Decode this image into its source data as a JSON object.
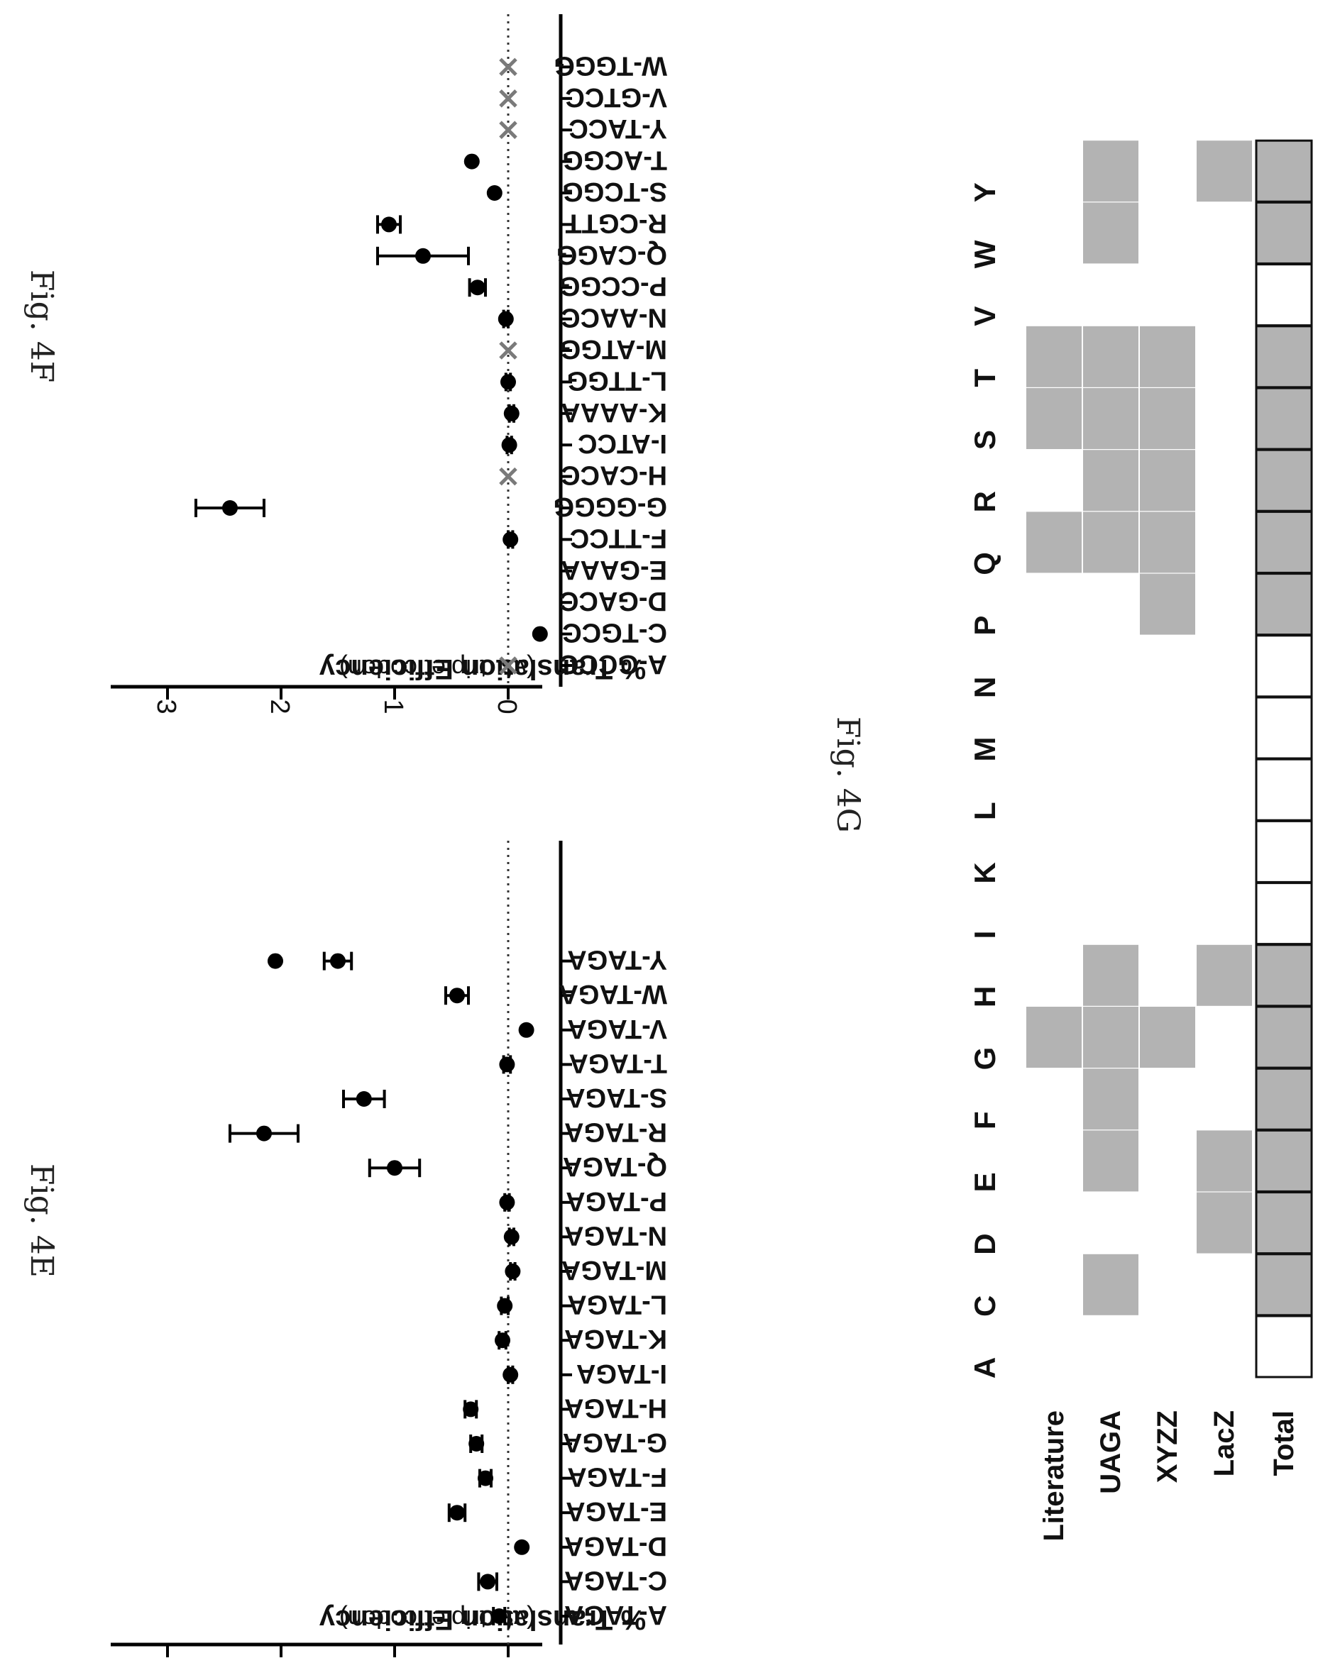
{
  "figures": {
    "e_label": "Fig. 4E",
    "f_label": "Fig. 4F",
    "g_label": "Fig. 4G"
  },
  "chart_data": [
    {
      "id": "4E",
      "type": "scatter",
      "ylabel": "% Translation Efficiency",
      "ylabel_sub": "(vs. triplet codon)",
      "ylim": [
        -0.3,
        3.5
      ],
      "yticks": [
        0,
        1,
        2,
        3
      ],
      "zero_line": "dotted",
      "categories": [
        "A-TAGA",
        "C-TAGA",
        "D-TAGA",
        "E-TAGA",
        "F-TAGA",
        "G-TAGA",
        "H-TAGA",
        "I-TAGA",
        "K-TAGA",
        "L-TAGA",
        "M-TAGA",
        "N-TAGA",
        "P-TAGA",
        "Q-TAGA",
        "R-TAGA",
        "S-TAGA",
        "T-TAGA",
        "V-TAGA",
        "W-TAGA",
        "Y-TAGA"
      ],
      "points": [
        {
          "cat": "A-TAGA",
          "y": 0.08,
          "err": 0.05,
          "marker": "dot"
        },
        {
          "cat": "C-TAGA",
          "y": 0.18,
          "err": 0.08,
          "marker": "dot"
        },
        {
          "cat": "D-TAGA",
          "y": -0.12,
          "err": 0.0,
          "marker": "dot"
        },
        {
          "cat": "E-TAGA",
          "y": 0.45,
          "err": 0.07,
          "marker": "dot"
        },
        {
          "cat": "F-TAGA",
          "y": 0.2,
          "err": 0.05,
          "marker": "dot"
        },
        {
          "cat": "G-TAGA",
          "y": 0.28,
          "err": 0.05,
          "marker": "dot"
        },
        {
          "cat": "H-TAGA",
          "y": 0.33,
          "err": 0.05,
          "marker": "dot"
        },
        {
          "cat": "I-TAGA",
          "y": -0.02,
          "err": 0.02,
          "marker": "dot"
        },
        {
          "cat": "K-TAGA",
          "y": 0.05,
          "err": 0.03,
          "marker": "dot"
        },
        {
          "cat": "L-TAGA",
          "y": 0.03,
          "err": 0.03,
          "marker": "dot"
        },
        {
          "cat": "M-TAGA",
          "y": -0.04,
          "err": 0.02,
          "marker": "dot"
        },
        {
          "cat": "N-TAGA",
          "y": -0.03,
          "err": 0.02,
          "marker": "dot"
        },
        {
          "cat": "P-TAGA",
          "y": 0.01,
          "err": 0.02,
          "marker": "dot"
        },
        {
          "cat": "Q-TAGA",
          "y": 1.0,
          "err": 0.22,
          "marker": "dot"
        },
        {
          "cat": "R-TAGA",
          "y": 2.15,
          "err": 0.3,
          "marker": "dot"
        },
        {
          "cat": "S-TAGA",
          "y": 1.27,
          "err": 0.18,
          "marker": "dot"
        },
        {
          "cat": "T-TAGA",
          "y": 0.01,
          "err": 0.03,
          "marker": "dot"
        },
        {
          "cat": "V-TAGA",
          "y": -0.16,
          "err": 0.0,
          "marker": "dot"
        },
        {
          "cat": "W-TAGA",
          "y": 0.45,
          "err": 0.1,
          "marker": "dot"
        },
        {
          "cat": "Y-TAGA",
          "y": 2.05,
          "err": 0.0,
          "marker": "dot"
        },
        {
          "cat": "Y-TAGA",
          "y": 1.5,
          "err": 0.12,
          "marker": "dot"
        }
      ]
    },
    {
      "id": "4F",
      "type": "scatter",
      "ylabel": "% Translation Efficiency",
      "ylabel_sub": "(vs. triplet codon)",
      "ylim": [
        -0.3,
        3.5
      ],
      "yticks": [
        0,
        1,
        2,
        3
      ],
      "zero_line": "dotted",
      "categories": [
        "A-GCCC",
        "C-TGCC",
        "D-GACC",
        "E-GAAA",
        "F-TTCC",
        "G-GGGG",
        "H-CACC",
        "I-ATCC",
        "K-AAAA",
        "L-TTGG",
        "M-ATGG",
        "N-AACC",
        "P-CCGG",
        "Q-CAGG",
        "R-CGTT",
        "S-TCGG",
        "T-ACGG",
        "Y-TACC",
        "V-GTCC",
        "W-TGGG"
      ],
      "points": [
        {
          "cat": "A-GCCC",
          "y": 0.0,
          "err": 0.0,
          "marker": "x"
        },
        {
          "cat": "C-TGCC",
          "y": -0.28,
          "err": 0.0,
          "marker": "dot"
        },
        {
          "cat": "F-TTCC",
          "y": -0.02,
          "err": 0.02,
          "marker": "dot"
        },
        {
          "cat": "G-GGGG",
          "y": 2.45,
          "err": 0.3,
          "marker": "dot"
        },
        {
          "cat": "H-CACC",
          "y": 0.0,
          "err": 0.0,
          "marker": "x"
        },
        {
          "cat": "I-ATCC",
          "y": -0.01,
          "err": 0.02,
          "marker": "dot"
        },
        {
          "cat": "K-AAAA",
          "y": -0.03,
          "err": 0.02,
          "marker": "dot"
        },
        {
          "cat": "L-TTGG",
          "y": 0.0,
          "err": 0.02,
          "marker": "dot"
        },
        {
          "cat": "M-ATGG",
          "y": 0.0,
          "err": 0.0,
          "marker": "x"
        },
        {
          "cat": "N-AACC",
          "y": 0.02,
          "err": 0.02,
          "marker": "dot"
        },
        {
          "cat": "P-CCGG",
          "y": 0.27,
          "err": 0.07,
          "marker": "dot"
        },
        {
          "cat": "Q-CAGG",
          "y": 0.75,
          "err": 0.4,
          "marker": "dot"
        },
        {
          "cat": "R-CGTT",
          "y": 1.05,
          "err": 0.1,
          "marker": "dot"
        },
        {
          "cat": "S-TCGG",
          "y": 0.12,
          "err": 0.0,
          "marker": "dot"
        },
        {
          "cat": "T-ACGG",
          "y": 0.32,
          "err": 0.0,
          "marker": "dot"
        },
        {
          "cat": "Y-TACC",
          "y": 0.0,
          "err": 0.0,
          "marker": "x"
        },
        {
          "cat": "V-GTCC",
          "y": 0.0,
          "err": 0.0,
          "marker": "x"
        },
        {
          "cat": "W-TGGG",
          "y": 0.0,
          "err": 0.0,
          "marker": "x"
        }
      ]
    },
    {
      "id": "4G",
      "type": "heatmap",
      "columns": [
        "A",
        "C",
        "D",
        "E",
        "F",
        "G",
        "H",
        "I",
        "K",
        "L",
        "M",
        "N",
        "P",
        "Q",
        "R",
        "S",
        "T",
        "V",
        "W",
        "Y"
      ],
      "rows": [
        "Literature",
        "UAGA",
        "XYZZ",
        "LacZ",
        "Total"
      ],
      "filled": {
        "Literature": [
          "G",
          "Q",
          "S",
          "T"
        ],
        "UAGA": [
          "C",
          "E",
          "F",
          "G",
          "H",
          "Q",
          "R",
          "S",
          "T",
          "W",
          "Y"
        ],
        "XYZZ": [
          "G",
          "P",
          "Q",
          "R",
          "S",
          "T"
        ],
        "LacZ": [
          "D",
          "E",
          "H",
          "Y"
        ],
        "Total": [
          "C",
          "D",
          "E",
          "F",
          "G",
          "H",
          "P",
          "Q",
          "R",
          "S",
          "T",
          "W",
          "Y"
        ]
      },
      "fill_color": "#b3b3b3",
      "empty_color": "#ffffff"
    }
  ]
}
